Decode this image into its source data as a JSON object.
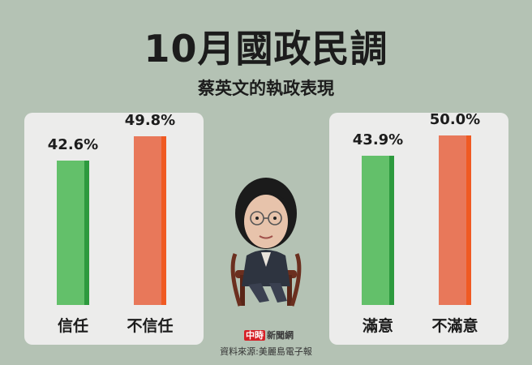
{
  "header": {
    "title": "10月國政民調",
    "subtitle": "蔡英文的執政表現"
  },
  "colors": {
    "background": "#b4c2b4",
    "panel": "#ececeb",
    "positive": "#63c06a",
    "positive_shade": "#2d9a3e",
    "negative": "#e8785a",
    "negative_shade": "#f05a22"
  },
  "chart_data": [
    {
      "type": "bar",
      "categories": [
        "信任",
        "不信任"
      ],
      "values": [
        42.6,
        49.8
      ],
      "value_labels": [
        "42.6%",
        "49.8%"
      ],
      "ylim": [
        0,
        55
      ],
      "grid": false
    },
    {
      "type": "bar",
      "categories": [
        "滿意",
        "不滿意"
      ],
      "values": [
        43.9,
        50.0
      ],
      "value_labels": [
        "43.9%",
        "50.0%"
      ],
      "ylim": [
        0,
        55
      ],
      "grid": false
    }
  ],
  "footer": {
    "logo_text": "中時新聞網",
    "logo_mark": "中時",
    "logo_name": "新聞網",
    "source": "資料來源:美麗島電子報"
  }
}
